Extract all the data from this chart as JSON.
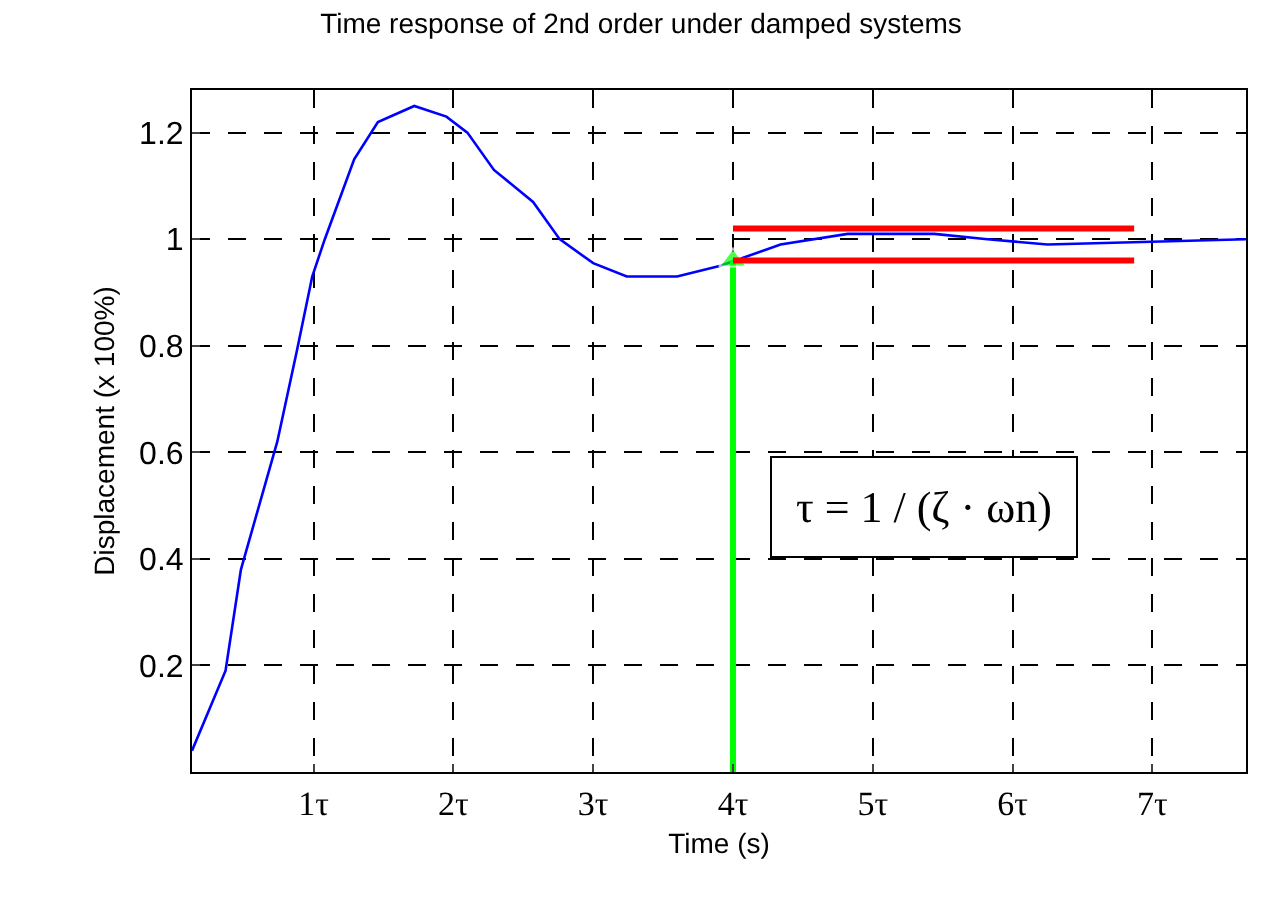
{
  "chart_data": {
    "type": "line",
    "title": "Time response of 2nd order under damped systems",
    "xlabel": "Time (s)",
    "ylabel": "Displacement (x 100%)",
    "xlim": [
      0.13,
      7.67
    ],
    "ylim": [
      0,
      1.28
    ],
    "xticks": [
      {
        "value": 1,
        "label": "1τ"
      },
      {
        "value": 2,
        "label": "2τ"
      },
      {
        "value": 3,
        "label": "3τ"
      },
      {
        "value": 4,
        "label": "4τ"
      },
      {
        "value": 5,
        "label": "5τ"
      },
      {
        "value": 6,
        "label": "6τ"
      },
      {
        "value": 7,
        "label": "7τ"
      }
    ],
    "yticks": [
      0.2,
      0.4,
      0.6,
      0.8,
      1,
      1.2
    ],
    "grid": true,
    "line_style": "solid",
    "series": [
      {
        "color": "#0000ff",
        "x": [
          0.13,
          0.37,
          0.48,
          0.74,
          0.88,
          0.99,
          1.08,
          1.29,
          1.46,
          1.72,
          1.95,
          2.1,
          2.29,
          2.57,
          2.76,
          3.0,
          3.24,
          3.6,
          3.91,
          4.34,
          4.82,
          5.44,
          5.82,
          6.25,
          7.67
        ],
        "values": [
          0.04,
          0.19,
          0.38,
          0.62,
          0.79,
          0.93,
          1.0,
          1.15,
          1.22,
          1.25,
          1.23,
          1.2,
          1.13,
          1.07,
          1.0,
          0.955,
          0.93,
          0.93,
          0.95,
          0.99,
          1.01,
          1.01,
          1.0,
          0.99,
          1.0
        ]
      },
      {
        "color": "#00ff00",
        "x": [
          4,
          4
        ],
        "values": [
          0,
          0.96
        ],
        "marker": "triangle"
      },
      {
        "color": "#ff0000",
        "x": [
          4,
          6.87
        ],
        "values": [
          1.02,
          1.02
        ]
      },
      {
        "color": "#ff0000",
        "x": [
          4,
          6.87
        ],
        "values": [
          0.96,
          0.96
        ]
      }
    ],
    "annotations": [
      "τ = 1 / (ζ · ωn)"
    ]
  }
}
